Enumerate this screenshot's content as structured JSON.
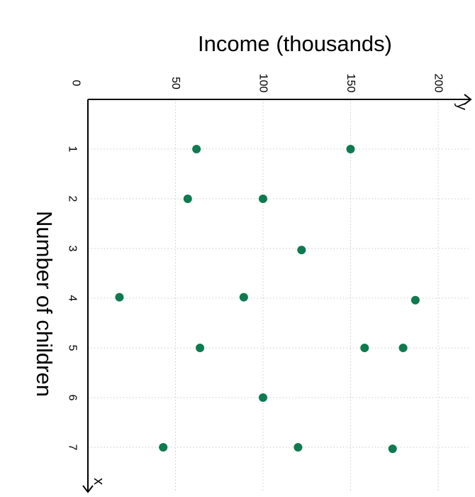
{
  "chart_data": {
    "type": "scatter",
    "title": "",
    "xlabel": "Number of children",
    "ylabel": "Income (thousands)",
    "x_axis_letter": "x",
    "y_axis_letter": "y",
    "xlim": [
      0,
      7.8
    ],
    "ylim": [
      0,
      217
    ],
    "x_ticks": [
      1,
      2,
      3,
      4,
      5,
      6,
      7
    ],
    "x_tick_labels": [
      "1",
      "2",
      "3",
      "4",
      "5",
      "6",
      "7"
    ],
    "y_ticks": [
      0,
      50,
      100,
      150,
      200
    ],
    "y_tick_labels": [
      "0",
      "50",
      "100",
      "150",
      "200"
    ],
    "grid": true,
    "marker_color": "#0e7a50",
    "points": [
      {
        "x": 1,
        "y": 62
      },
      {
        "x": 1,
        "y": 150
      },
      {
        "x": 2,
        "y": 57
      },
      {
        "x": 2,
        "y": 100
      },
      {
        "x": 3.03,
        "y": 122
      },
      {
        "x": 3.98,
        "y": 18
      },
      {
        "x": 3.98,
        "y": 89
      },
      {
        "x": 4.04,
        "y": 187
      },
      {
        "x": 5,
        "y": 64
      },
      {
        "x": 5,
        "y": 158
      },
      {
        "x": 5,
        "y": 180
      },
      {
        "x": 6,
        "y": 100
      },
      {
        "x": 7,
        "y": 43
      },
      {
        "x": 7,
        "y": 120
      },
      {
        "x": 7.03,
        "y": 174
      }
    ]
  }
}
